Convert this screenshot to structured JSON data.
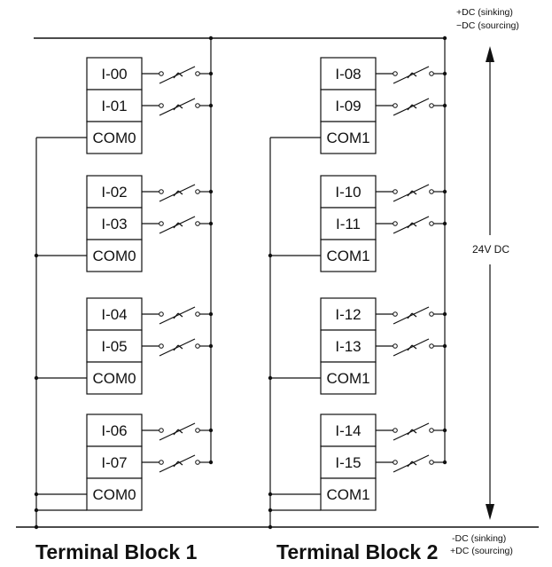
{
  "supply_top": {
    "line1": "+DC (sinking)",
    "line2": "−DC (sourcing)"
  },
  "supply_bottom": {
    "line1": "-DC (sinking)",
    "line2": "+DC (sourcing)"
  },
  "voltage_label": "24V DC",
  "blocks": [
    {
      "title": "Terminal Block 1",
      "groups": [
        {
          "inputs": [
            "I-00",
            "I-01"
          ],
          "common": "COM0"
        },
        {
          "inputs": [
            "I-02",
            "I-03"
          ],
          "common": "COM0"
        },
        {
          "inputs": [
            "I-04",
            "I-05"
          ],
          "common": "COM0"
        },
        {
          "inputs": [
            "I-06",
            "I-07"
          ],
          "common": "COM0"
        }
      ]
    },
    {
      "title": "Terminal Block 2",
      "groups": [
        {
          "inputs": [
            "I-08",
            "I-09"
          ],
          "common": "COM1"
        },
        {
          "inputs": [
            "I-10",
            "I-11"
          ],
          "common": "COM1"
        },
        {
          "inputs": [
            "I-12",
            "I-13"
          ],
          "common": "COM1"
        },
        {
          "inputs": [
            "I-14",
            "I-15"
          ],
          "common": "COM1"
        }
      ]
    }
  ]
}
